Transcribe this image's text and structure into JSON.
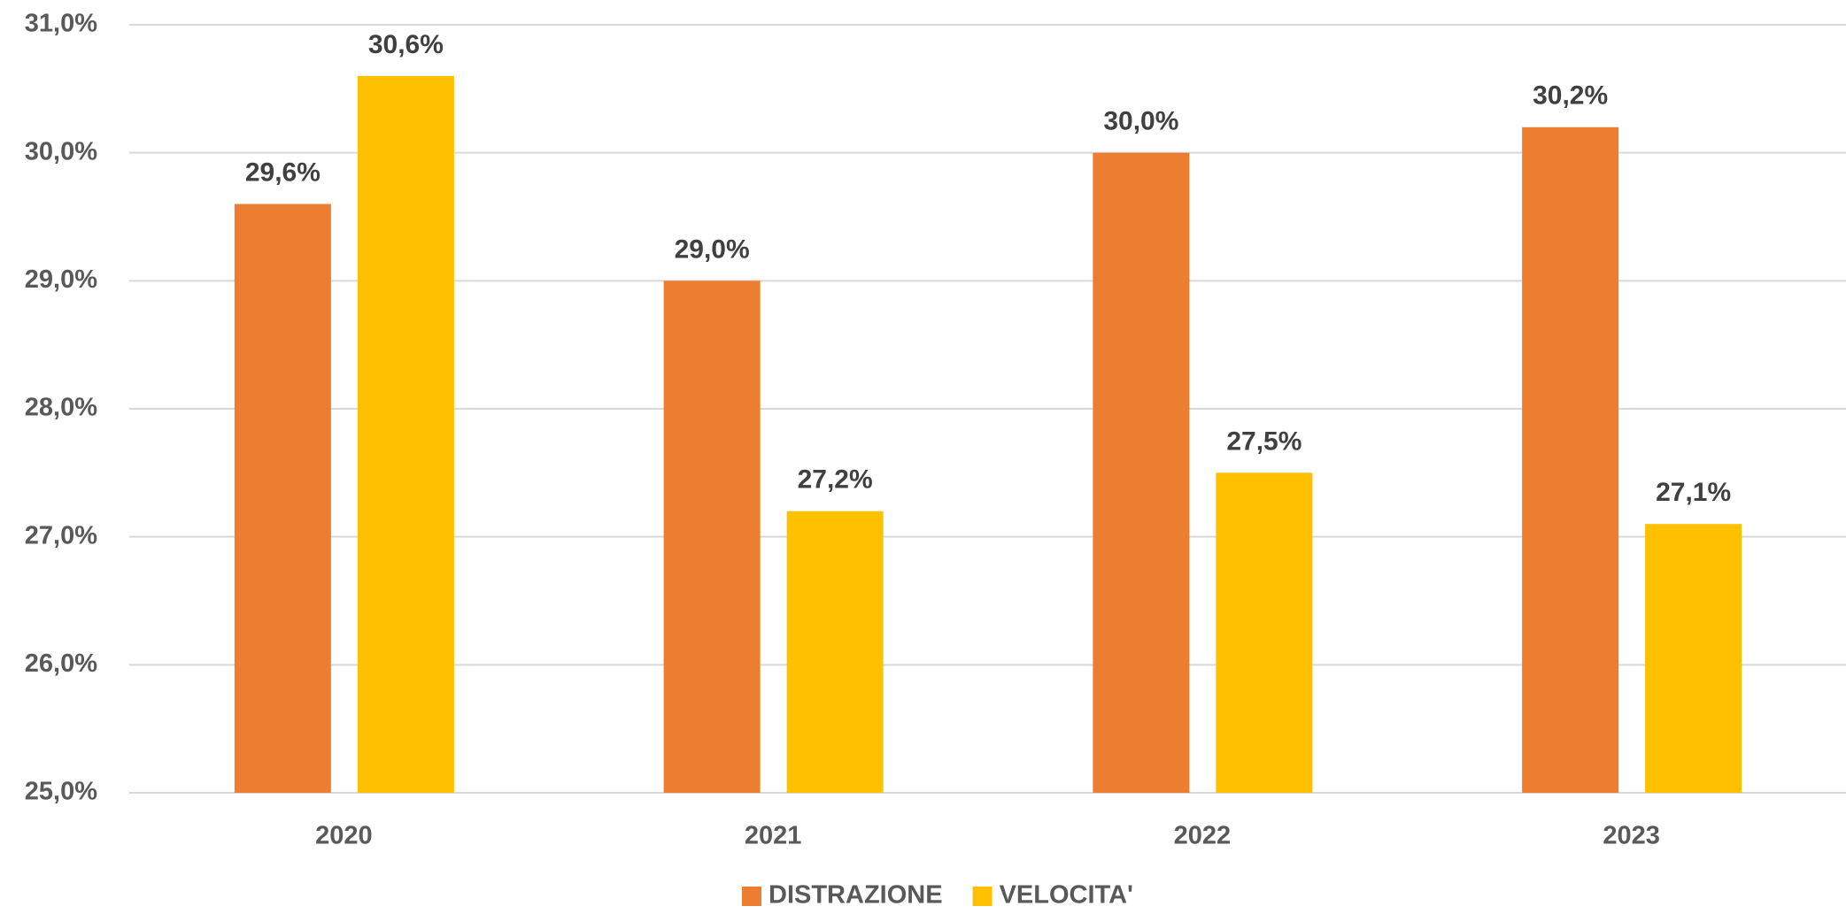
{
  "chart_data": {
    "type": "bar",
    "categories": [
      "2020",
      "2021",
      "2022",
      "2023"
    ],
    "series": [
      {
        "name": "DISTRAZIONE",
        "color": "#ed7d31",
        "values": [
          29.6,
          29.0,
          30.0,
          30.2
        ],
        "value_labels": [
          "29,6%",
          "29,0%",
          "30,0%",
          "30,2%"
        ]
      },
      {
        "name": "VELOCITA'",
        "color": "#ffc000",
        "values": [
          30.6,
          27.2,
          27.5,
          27.1
        ],
        "value_labels": [
          "30,6%",
          "27,2%",
          "27,5%",
          "27,1%"
        ]
      }
    ],
    "ylim": [
      25,
      31
    ],
    "yticks": [
      {
        "value": 25,
        "label": "25,0%"
      },
      {
        "value": 26,
        "label": "26,0%"
      },
      {
        "value": 27,
        "label": "27,0%"
      },
      {
        "value": 28,
        "label": "28,0%"
      },
      {
        "value": 29,
        "label": "29,0%"
      },
      {
        "value": 30,
        "label": "30,0%"
      },
      {
        "value": 31,
        "label": "31,0%"
      }
    ],
    "grid": true,
    "legend": "bottom"
  }
}
